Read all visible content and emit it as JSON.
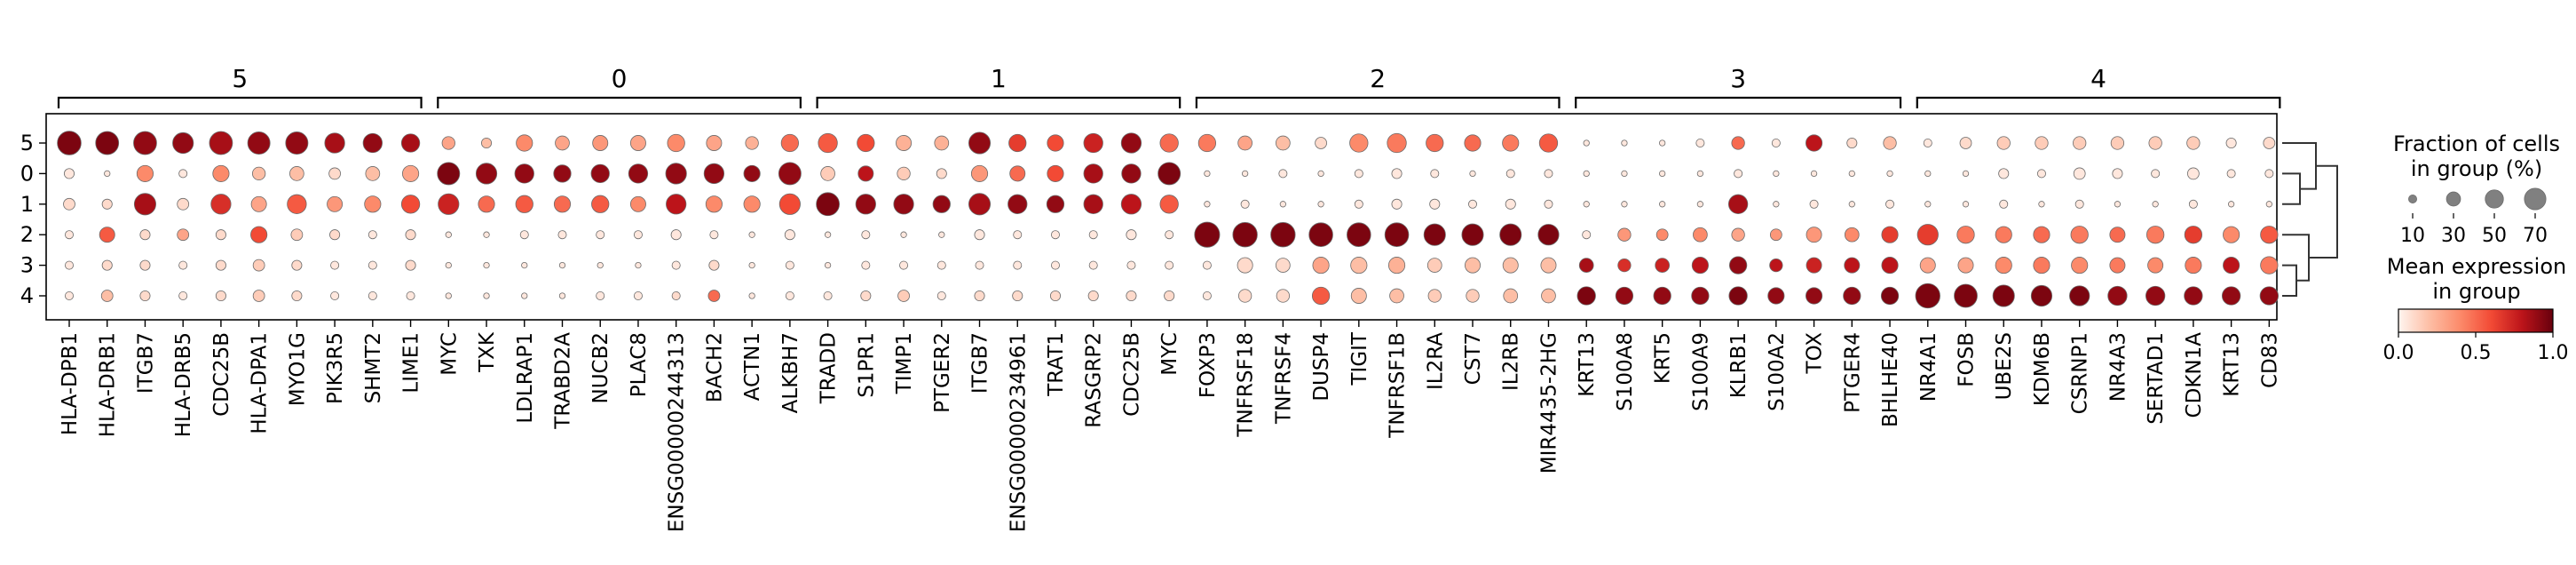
{
  "chart_data": {
    "type": "dotplot",
    "rows": [
      "5",
      "0",
      "1",
      "2",
      "3",
      "4"
    ],
    "group_labels": [
      "5",
      "0",
      "1",
      "2",
      "3",
      "4"
    ],
    "genes": [
      "HLA-DPB1",
      "HLA-DRB1",
      "ITGB7",
      "HLA-DRB5",
      "CDC25B",
      "HLA-DPA1",
      "MYO1G",
      "PIK3R5",
      "SHMT2",
      "LIME1",
      "MYC",
      "TXK",
      "LDLRAP1",
      "TRABD2A",
      "NUCB2",
      "PLAC8",
      "ENSG00000244313",
      "BACH2",
      "ACTN1",
      "ALKBH7",
      "TRADD",
      "S1PR1",
      "TIMP1",
      "PTGER2",
      "ITGB7",
      "ENSG00000234961",
      "TRAT1",
      "RASGRP2",
      "CDC25B",
      "MYC",
      "FOXP3",
      "TNFRSF18",
      "TNFRSF4",
      "DUSP4",
      "TIGIT",
      "TNFRSF1B",
      "IL2RA",
      "CST7",
      "IL2RB",
      "MIR4435-2HG",
      "KRT13",
      "S100A8",
      "KRT5",
      "S100A9",
      "KLRB1",
      "S100A2",
      "TOX",
      "PTGER4",
      "BHLHE40",
      "NR4A1",
      "FOSB",
      "UBE2S",
      "KDM6B",
      "CSRNP1",
      "NR4A3",
      "SERTAD1",
      "CDKN1A",
      "KRT13",
      "CD83"
    ],
    "group_spans": [
      [
        0,
        9
      ],
      [
        10,
        19
      ],
      [
        20,
        29
      ],
      [
        30,
        39
      ],
      [
        40,
        48
      ],
      [
        49,
        58
      ]
    ],
    "size_values": [
      [
        85,
        80,
        80,
        65,
        80,
        75,
        75,
        60,
        55,
        50,
        25,
        15,
        40,
        30,
        35,
        35,
        45,
        35,
        25,
        45,
        55,
        45,
        35,
        30,
        70,
        45,
        40,
        55,
        60,
        50,
        45,
        30,
        30,
        20,
        50,
        55,
        45,
        40,
        40,
        50,
        5,
        5,
        5,
        10,
        25,
        10,
        40,
        15,
        25,
        10,
        20,
        25,
        25,
        25,
        25,
        25,
        25,
        15,
        20
      ],
      [
        15,
        5,
        40,
        10,
        40,
        25,
        30,
        20,
        30,
        40,
        75,
        65,
        55,
        45,
        50,
        55,
        65,
        60,
        40,
        75,
        30,
        35,
        25,
        15,
        40,
        35,
        40,
        55,
        55,
        75,
        5,
        5,
        10,
        5,
        10,
        15,
        10,
        5,
        10,
        10,
        5,
        5,
        5,
        5,
        10,
        5,
        5,
        5,
        5,
        5,
        5,
        15,
        10,
        20,
        15,
        10,
        20,
        10,
        10
      ],
      [
        20,
        15,
        70,
        20,
        60,
        35,
        55,
        35,
        40,
        50,
        65,
        40,
        45,
        40,
        45,
        35,
        60,
        40,
        40,
        65,
        80,
        60,
        60,
        45,
        70,
        55,
        45,
        55,
        60,
        50,
        5,
        10,
        5,
        5,
        10,
        15,
        15,
        10,
        15,
        10,
        5,
        5,
        5,
        5,
        55,
        5,
        10,
        5,
        10,
        5,
        5,
        10,
        5,
        10,
        5,
        5,
        10,
        5,
        5
      ],
      [
        10,
        35,
        15,
        20,
        15,
        40,
        20,
        15,
        10,
        15,
        5,
        5,
        10,
        10,
        10,
        10,
        15,
        10,
        5,
        15,
        5,
        10,
        5,
        5,
        15,
        10,
        10,
        10,
        15,
        10,
        95,
        90,
        90,
        85,
        85,
        85,
        70,
        70,
        70,
        65,
        10,
        25,
        20,
        30,
        25,
        20,
        35,
        30,
        40,
        65,
        45,
        40,
        40,
        45,
        35,
        45,
        45,
        40,
        45
      ],
      [
        10,
        15,
        15,
        10,
        15,
        20,
        15,
        10,
        10,
        15,
        5,
        5,
        5,
        5,
        5,
        5,
        10,
        15,
        5,
        10,
        5,
        10,
        10,
        10,
        10,
        10,
        10,
        10,
        10,
        10,
        10,
        35,
        30,
        40,
        40,
        40,
        30,
        35,
        35,
        35,
        30,
        25,
        30,
        40,
        45,
        25,
        35,
        35,
        40,
        35,
        35,
        40,
        40,
        40,
        35,
        35,
        40,
        40,
        45
      ],
      [
        10,
        20,
        15,
        10,
        15,
        20,
        15,
        10,
        10,
        10,
        5,
        5,
        5,
        5,
        10,
        10,
        10,
        20,
        5,
        10,
        10,
        15,
        20,
        10,
        15,
        15,
        15,
        15,
        15,
        15,
        10,
        25,
        25,
        45,
        35,
        30,
        25,
        25,
        30,
        30,
        50,
        45,
        45,
        45,
        50,
        40,
        40,
        45,
        45,
        90,
        80,
        70,
        65,
        60,
        55,
        55,
        50,
        50,
        50
      ]
    ],
    "color_values": [
      [
        0.95,
        0.95,
        0.9,
        0.9,
        0.85,
        0.9,
        0.9,
        0.85,
        0.9,
        0.85,
        0.3,
        0.2,
        0.4,
        0.3,
        0.35,
        0.3,
        0.4,
        0.3,
        0.25,
        0.5,
        0.55,
        0.6,
        0.25,
        0.25,
        0.9,
        0.65,
        0.6,
        0.75,
        0.9,
        0.5,
        0.45,
        0.3,
        0.2,
        0.1,
        0.4,
        0.45,
        0.5,
        0.5,
        0.45,
        0.55,
        0.05,
        0.05,
        0.05,
        0.05,
        0.5,
        0.05,
        0.8,
        0.1,
        0.2,
        0.05,
        0.1,
        0.15,
        0.15,
        0.15,
        0.15,
        0.15,
        0.15,
        0.05,
        0.1
      ],
      [
        0.05,
        0.05,
        0.4,
        0.05,
        0.4,
        0.2,
        0.2,
        0.1,
        0.2,
        0.3,
        0.95,
        0.9,
        0.9,
        0.9,
        0.9,
        0.9,
        0.9,
        0.9,
        0.9,
        0.9,
        0.15,
        0.8,
        0.15,
        0.1,
        0.35,
        0.5,
        0.6,
        0.85,
        0.9,
        0.95,
        0.05,
        0.05,
        0.05,
        0.05,
        0.05,
        0.05,
        0.05,
        0.05,
        0.05,
        0.05,
        0.05,
        0.05,
        0.05,
        0.05,
        0.05,
        0.05,
        0.05,
        0.05,
        0.05,
        0.05,
        0.05,
        0.05,
        0.05,
        0.05,
        0.05,
        0.05,
        0.05,
        0.05,
        0.05
      ],
      [
        0.1,
        0.1,
        0.85,
        0.1,
        0.7,
        0.3,
        0.55,
        0.35,
        0.4,
        0.6,
        0.75,
        0.5,
        0.55,
        0.5,
        0.55,
        0.4,
        0.8,
        0.4,
        0.4,
        0.6,
        0.95,
        0.9,
        0.9,
        0.9,
        0.85,
        0.9,
        0.9,
        0.85,
        0.8,
        0.55,
        0.05,
        0.05,
        0.05,
        0.05,
        0.05,
        0.05,
        0.05,
        0.05,
        0.05,
        0.05,
        0.05,
        0.05,
        0.05,
        0.05,
        0.85,
        0.05,
        0.05,
        0.05,
        0.05,
        0.05,
        0.05,
        0.05,
        0.05,
        0.05,
        0.05,
        0.05,
        0.05,
        0.05,
        0.05
      ],
      [
        0.05,
        0.55,
        0.1,
        0.3,
        0.1,
        0.6,
        0.15,
        0.1,
        0.05,
        0.1,
        0.05,
        0.05,
        0.05,
        0.05,
        0.05,
        0.05,
        0.05,
        0.05,
        0.05,
        0.05,
        0.05,
        0.05,
        0.05,
        0.05,
        0.05,
        0.05,
        0.05,
        0.05,
        0.05,
        0.05,
        0.95,
        0.95,
        0.95,
        0.95,
        0.95,
        0.95,
        0.95,
        0.95,
        0.95,
        0.95,
        0.05,
        0.35,
        0.4,
        0.4,
        0.3,
        0.35,
        0.35,
        0.4,
        0.65,
        0.65,
        0.45,
        0.45,
        0.5,
        0.45,
        0.5,
        0.45,
        0.65,
        0.4,
        0.55
      ],
      [
        0.05,
        0.1,
        0.1,
        0.05,
        0.1,
        0.15,
        0.1,
        0.05,
        0.05,
        0.1,
        0.05,
        0.05,
        0.05,
        0.05,
        0.05,
        0.05,
        0.05,
        0.1,
        0.05,
        0.05,
        0.05,
        0.05,
        0.05,
        0.05,
        0.05,
        0.05,
        0.05,
        0.05,
        0.05,
        0.05,
        0.05,
        0.1,
        0.1,
        0.3,
        0.2,
        0.25,
        0.15,
        0.2,
        0.2,
        0.2,
        0.85,
        0.7,
        0.75,
        0.8,
        0.9,
        0.8,
        0.75,
        0.8,
        0.8,
        0.3,
        0.3,
        0.4,
        0.45,
        0.4,
        0.45,
        0.4,
        0.45,
        0.8,
        0.45
      ],
      [
        0.05,
        0.2,
        0.1,
        0.05,
        0.1,
        0.15,
        0.1,
        0.05,
        0.05,
        0.05,
        0.05,
        0.05,
        0.05,
        0.05,
        0.05,
        0.05,
        0.1,
        0.5,
        0.05,
        0.05,
        0.05,
        0.1,
        0.15,
        0.05,
        0.1,
        0.1,
        0.1,
        0.1,
        0.1,
        0.1,
        0.05,
        0.1,
        0.1,
        0.55,
        0.2,
        0.2,
        0.15,
        0.15,
        0.2,
        0.2,
        0.95,
        0.9,
        0.9,
        0.9,
        0.95,
        0.9,
        0.9,
        0.9,
        0.95,
        0.95,
        0.95,
        0.95,
        0.95,
        0.95,
        0.9,
        0.9,
        0.9,
        0.9,
        0.9
      ]
    ],
    "size_legend": {
      "title": [
        "Fraction of cells",
        "in group (%)"
      ],
      "values": [
        10,
        30,
        50,
        70
      ],
      "labels": [
        "10",
        "30",
        "50",
        "70"
      ]
    },
    "color_legend": {
      "title": [
        "Mean expression",
        "in group"
      ],
      "range": [
        0.0,
        1.0
      ],
      "ticks": [
        0.0,
        0.5,
        1.0
      ],
      "tick_labels": [
        "0.0",
        "0.5",
        "1.0"
      ],
      "colors": [
        "#fff5f0",
        "#fdbea5",
        "#fc8a6a",
        "#f24a35",
        "#bc141a",
        "#67000d"
      ]
    },
    "dendrogram_order": [
      "5",
      "0",
      "1",
      "2",
      "3",
      "4"
    ]
  }
}
